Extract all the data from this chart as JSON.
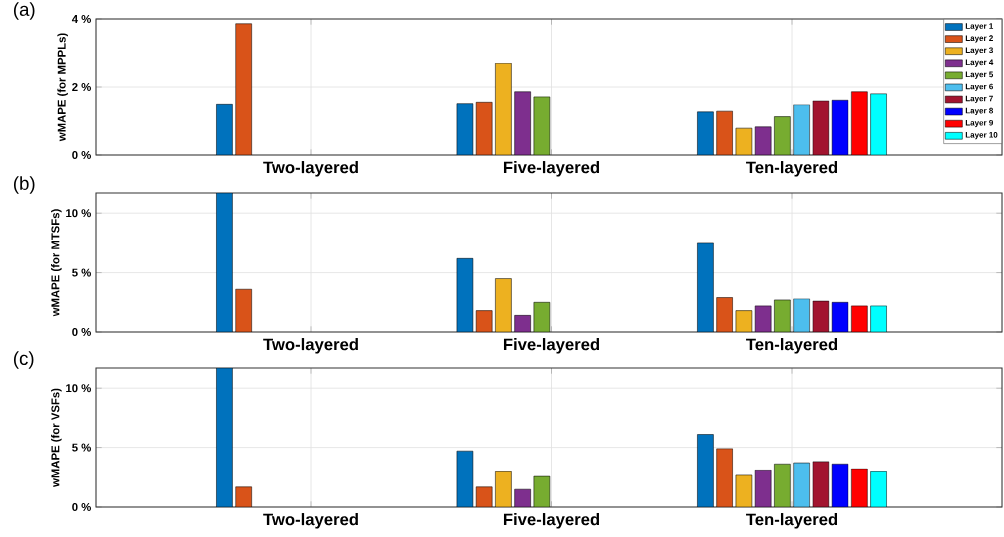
{
  "chart_data": [
    {
      "type": "bar",
      "title": "(a)",
      "ylabel": "wMAPE (for MPPLs)",
      "categories": [
        "Two-layered",
        "Five-layered",
        "Ten-layered"
      ],
      "ylim": [
        0,
        4
      ],
      "yticks": [
        {
          "value": 0,
          "label": "0 %"
        },
        {
          "value": 2,
          "label": "2 %"
        },
        {
          "value": 4,
          "label": "4 %"
        }
      ],
      "grid": true,
      "legend": "top right",
      "series": [
        {
          "name": "Layer 1",
          "color": "#0072bd",
          "values": [
            1.49,
            1.51,
            1.27
          ]
        },
        {
          "name": "Layer 2",
          "color": "#d95319",
          "values": [
            3.86,
            1.55,
            1.29
          ]
        },
        {
          "name": "Layer 3",
          "color": "#edb120",
          "values": [
            null,
            2.7,
            0.79
          ]
        },
        {
          "name": "Layer 4",
          "color": "#7e2f8e",
          "values": [
            null,
            1.86,
            0.83
          ]
        },
        {
          "name": "Layer 5",
          "color": "#77ac30",
          "values": [
            null,
            1.71,
            1.13
          ]
        },
        {
          "name": "Layer 6",
          "color": "#4dbeee",
          "values": [
            null,
            null,
            1.48
          ]
        },
        {
          "name": "Layer 7",
          "color": "#a2142f",
          "values": [
            null,
            null,
            1.59
          ]
        },
        {
          "name": "Layer 8",
          "color": "#0000ff",
          "values": [
            null,
            null,
            1.61
          ]
        },
        {
          "name": "Layer 9",
          "color": "#ff0000",
          "values": [
            null,
            null,
            1.86
          ]
        },
        {
          "name": "Layer 10",
          "color": "#00ffff",
          "values": [
            null,
            null,
            1.8
          ]
        }
      ]
    },
    {
      "type": "bar",
      "title": "(b)",
      "ylabel": "wMAPE (for MTSFs)",
      "categories": [
        "Two-layered",
        "Five-layered",
        "Ten-layered"
      ],
      "ylim": [
        0,
        11.7
      ],
      "yticks": [
        {
          "value": 0,
          "label": "0 %"
        },
        {
          "value": 5,
          "label": "5 %"
        },
        {
          "value": 10,
          "label": "10 %"
        }
      ],
      "grid": true,
      "series": [
        {
          "color": "#0072bd",
          "values": [
            11.7,
            6.2,
            7.5
          ]
        },
        {
          "color": "#d95319",
          "values": [
            3.6,
            1.8,
            2.9
          ]
        },
        {
          "color": "#edb120",
          "values": [
            null,
            4.5,
            1.8
          ]
        },
        {
          "color": "#7e2f8e",
          "values": [
            null,
            1.4,
            2.2
          ]
        },
        {
          "color": "#77ac30",
          "values": [
            null,
            2.5,
            2.7
          ]
        },
        {
          "color": "#4dbeee",
          "values": [
            null,
            null,
            2.8
          ]
        },
        {
          "color": "#a2142f",
          "values": [
            null,
            null,
            2.6
          ]
        },
        {
          "color": "#0000ff",
          "values": [
            null,
            null,
            2.5
          ]
        },
        {
          "color": "#ff0000",
          "values": [
            null,
            null,
            2.2
          ]
        },
        {
          "color": "#00ffff",
          "values": [
            null,
            null,
            2.2
          ]
        }
      ]
    },
    {
      "type": "bar",
      "title": "(c)",
      "ylabel": "wMAPE (for VSFs)",
      "categories": [
        "Two-layered",
        "Five-layered",
        "Ten-layered"
      ],
      "ylim": [
        0,
        11.7
      ],
      "yticks": [
        {
          "value": 0,
          "label": "0 %"
        },
        {
          "value": 5,
          "label": "5 %"
        },
        {
          "value": 10,
          "label": "10 %"
        }
      ],
      "grid": true,
      "series": [
        {
          "color": "#0072bd",
          "values": [
            11.7,
            4.7,
            6.1
          ]
        },
        {
          "color": "#d95319",
          "values": [
            1.7,
            1.7,
            4.9
          ]
        },
        {
          "color": "#edb120",
          "values": [
            null,
            3.0,
            2.7
          ]
        },
        {
          "color": "#7e2f8e",
          "values": [
            null,
            1.5,
            3.1
          ]
        },
        {
          "color": "#77ac30",
          "values": [
            null,
            2.6,
            3.6
          ]
        },
        {
          "color": "#4dbeee",
          "values": [
            null,
            null,
            3.7
          ]
        },
        {
          "color": "#a2142f",
          "values": [
            null,
            null,
            3.8
          ]
        },
        {
          "color": "#0000ff",
          "values": [
            null,
            null,
            3.6
          ]
        },
        {
          "color": "#ff0000",
          "values": [
            null,
            null,
            3.2
          ]
        },
        {
          "color": "#00ffff",
          "values": [
            null,
            null,
            3.0
          ]
        }
      ]
    }
  ]
}
